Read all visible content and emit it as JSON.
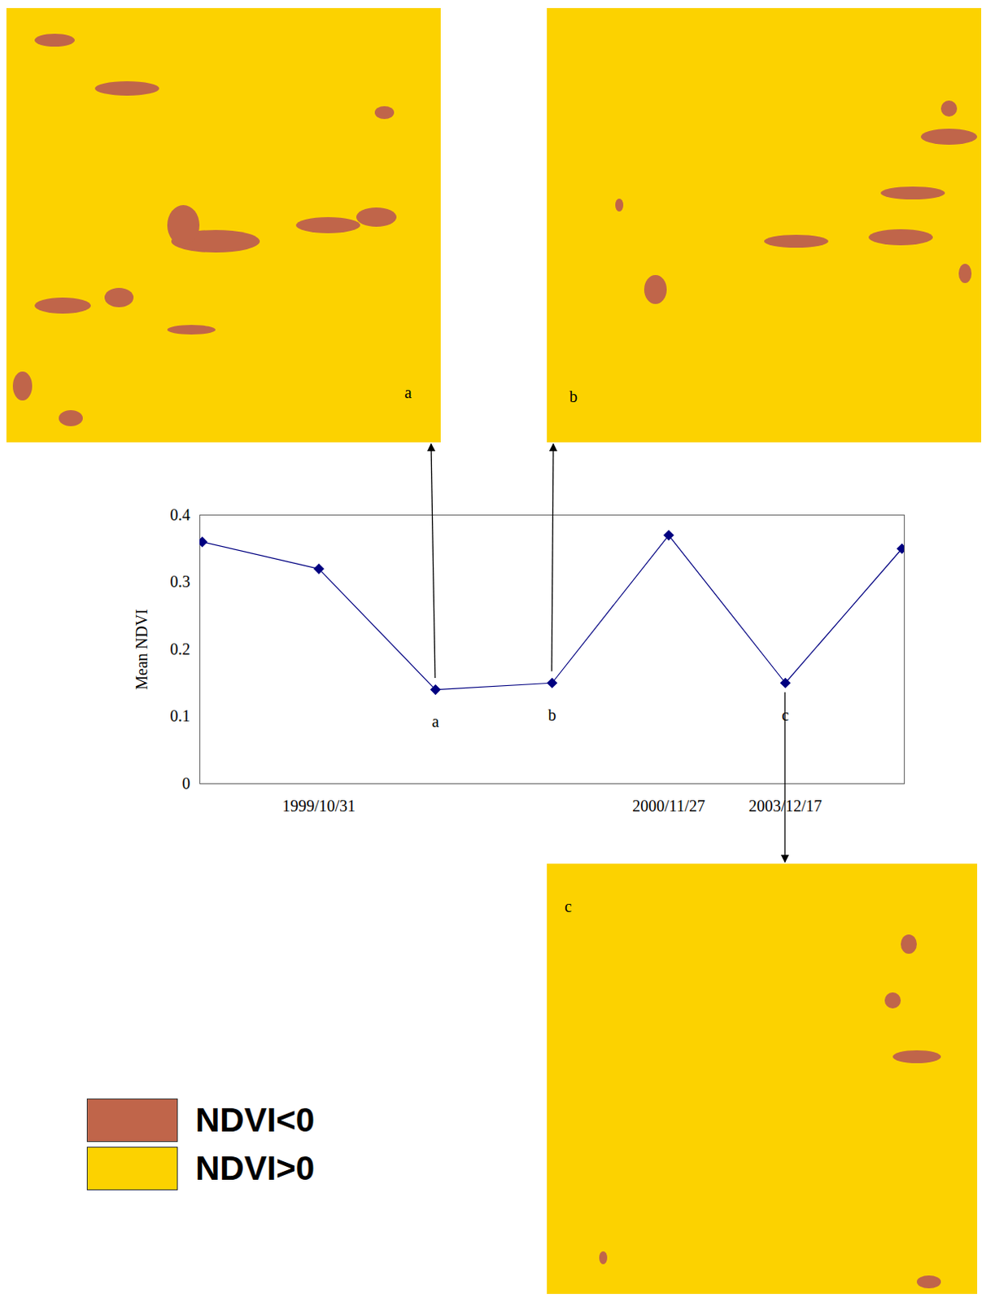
{
  "chart_data": {
    "type": "line",
    "categories": [
      null,
      "1999/10/31",
      null,
      null,
      "2000/11/27",
      "2003/12/17",
      null
    ],
    "values": [
      0.36,
      0.32,
      0.14,
      0.15,
      0.37,
      0.15,
      0.35
    ],
    "point_labels": [
      null,
      null,
      "a",
      "b",
      null,
      "c",
      null
    ],
    "color": "#000080",
    "marker": "diamond",
    "y_label": "Mean NDVI",
    "ylim": [
      0,
      0.4
    ],
    "yticks": [
      0,
      0.1,
      0.2,
      0.3,
      0.4
    ],
    "grid": false
  },
  "panels": [
    {
      "label": "a"
    },
    {
      "label": "b"
    },
    {
      "label": "c"
    }
  ],
  "legend_items": [
    {
      "label": "NDVI<0",
      "color": "#c0654a"
    },
    {
      "label": "NDVI>0",
      "color": "#fcd200"
    }
  ]
}
